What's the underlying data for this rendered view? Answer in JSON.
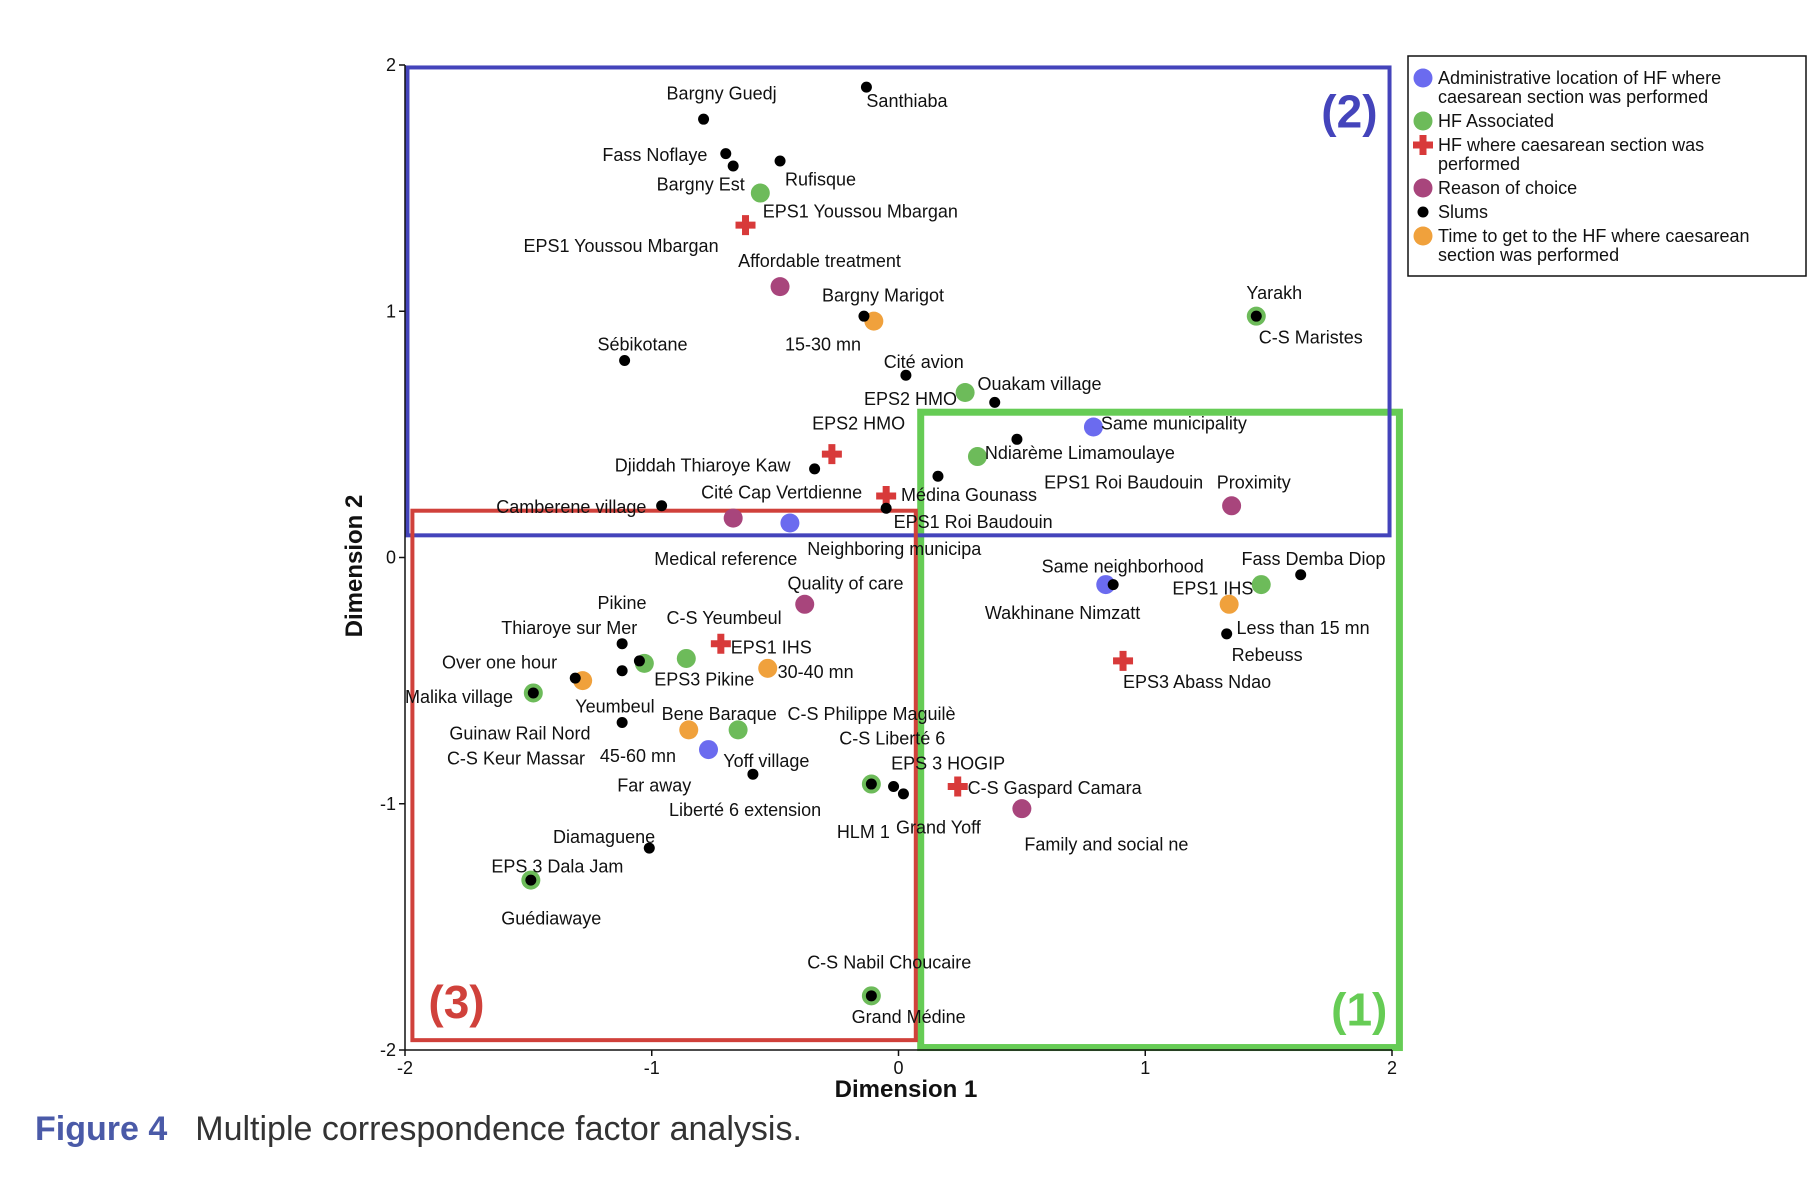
{
  "caption": {
    "label": "Figure 4",
    "text": "Multiple correspondence factor analysis."
  },
  "chart_data": {
    "type": "scatter",
    "xlabel": "Dimension 1",
    "ylabel": "Dimension 2",
    "xlim": [
      -2,
      2
    ],
    "ylim": [
      -2,
      2
    ],
    "xticks": [
      -2,
      -1,
      0,
      1,
      2
    ],
    "yticks": [
      -2,
      -1,
      0,
      1,
      2
    ],
    "grid": false,
    "legend_position": "top-right outside",
    "colors": {
      "admin": "#6b6bef",
      "assoc": "#6dbb5a",
      "hf": "#d83a3a",
      "reason": "#a8457c",
      "slum": "#000000",
      "time": "#f0a13c"
    },
    "series": [
      {
        "key": "admin",
        "name": "Administrative location of HF where caesarean section was performed",
        "legend_lines": [
          "Administrative location of HF where",
          "caesarean section was performed"
        ],
        "marker": "circle"
      },
      {
        "key": "assoc",
        "name": "HF Associated",
        "legend_lines": [
          "HF Associated"
        ],
        "marker": "circle"
      },
      {
        "key": "hf",
        "name": "HF where caesarean section was performed",
        "legend_lines": [
          "HF where caesarean section was",
          "performed"
        ],
        "marker": "cross"
      },
      {
        "key": "reason",
        "name": "Reason of choice",
        "legend_lines": [
          "Reason of choice"
        ],
        "marker": "circle"
      },
      {
        "key": "slum",
        "name": "Slums",
        "legend_lines": [
          "Slums"
        ],
        "marker": "dot"
      },
      {
        "key": "time",
        "name": "Time to get to the HF where caesarean section was performed",
        "legend_lines": [
          "Time to get to the HF where caesarean",
          "section was performed"
        ],
        "marker": "circle"
      }
    ],
    "points": [
      {
        "s": "slum",
        "x": -0.13,
        "y": 1.91
      },
      {
        "s": "slum",
        "x": -0.79,
        "y": 1.78
      },
      {
        "s": "slum",
        "x": -0.7,
        "y": 1.64
      },
      {
        "s": "slum",
        "x": -0.67,
        "y": 1.59
      },
      {
        "s": "slum",
        "x": -0.48,
        "y": 1.61
      },
      {
        "s": "assoc",
        "x": -0.56,
        "y": 1.48
      },
      {
        "s": "hf",
        "x": -0.62,
        "y": 1.35
      },
      {
        "s": "reason",
        "x": -0.48,
        "y": 1.1
      },
      {
        "s": "slum",
        "x": -0.14,
        "y": 0.98
      },
      {
        "s": "time",
        "x": -0.1,
        "y": 0.96
      },
      {
        "s": "slum",
        "x": -1.11,
        "y": 0.8
      },
      {
        "s": "slum",
        "x": 0.03,
        "y": 0.74
      },
      {
        "s": "assoc",
        "x": 0.27,
        "y": 0.67
      },
      {
        "s": "slum",
        "x": 0.39,
        "y": 0.63
      },
      {
        "s": "admin",
        "x": 0.79,
        "y": 0.53
      },
      {
        "s": "slum",
        "x": 0.48,
        "y": 0.48
      },
      {
        "s": "hf",
        "x": -0.27,
        "y": 0.42
      },
      {
        "s": "assoc",
        "x": 0.32,
        "y": 0.41
      },
      {
        "s": "slum",
        "x": -0.34,
        "y": 0.36
      },
      {
        "s": "slum",
        "x": 0.16,
        "y": 0.33
      },
      {
        "s": "hf",
        "x": -0.05,
        "y": 0.25
      },
      {
        "s": "slum",
        "x": -0.05,
        "y": 0.2
      },
      {
        "s": "slum",
        "x": -0.96,
        "y": 0.21
      },
      {
        "s": "reason",
        "x": -0.67,
        "y": 0.16
      },
      {
        "s": "admin",
        "x": -0.44,
        "y": 0.14
      },
      {
        "s": "reason",
        "x": 1.35,
        "y": 0.21
      },
      {
        "s": "assoc",
        "x": 1.45,
        "y": 0.98
      },
      {
        "s": "slum",
        "x": 1.45,
        "y": 0.98
      },
      {
        "s": "slum",
        "x": 1.63,
        "y": -0.07
      },
      {
        "s": "admin",
        "x": 0.84,
        "y": -0.11
      },
      {
        "s": "slum",
        "x": 0.87,
        "y": -0.11
      },
      {
        "s": "assoc",
        "x": 1.47,
        "y": -0.11
      },
      {
        "s": "time",
        "x": 1.34,
        "y": -0.19
      },
      {
        "s": "slum",
        "x": 1.33,
        "y": -0.31
      },
      {
        "s": "hf",
        "x": 0.91,
        "y": -0.42
      },
      {
        "s": "reason",
        "x": -0.38,
        "y": -0.19
      },
      {
        "s": "hf",
        "x": -0.72,
        "y": -0.35
      },
      {
        "s": "assoc",
        "x": -0.86,
        "y": -0.41
      },
      {
        "s": "slum",
        "x": -1.12,
        "y": -0.35
      },
      {
        "s": "slum",
        "x": -1.12,
        "y": -0.46
      },
      {
        "s": "slum",
        "x": -1.05,
        "y": -0.42
      },
      {
        "s": "assoc",
        "x": -1.03,
        "y": -0.43
      },
      {
        "s": "time",
        "x": -0.53,
        "y": -0.45
      },
      {
        "s": "slum",
        "x": -1.31,
        "y": -0.49
      },
      {
        "s": "time",
        "x": -1.28,
        "y": -0.5
      },
      {
        "s": "assoc",
        "x": -1.48,
        "y": -0.55
      },
      {
        "s": "slum",
        "x": -1.48,
        "y": -0.55
      },
      {
        "s": "slum",
        "x": -1.12,
        "y": -0.67
      },
      {
        "s": "time",
        "x": -0.85,
        "y": -0.7
      },
      {
        "s": "assoc",
        "x": -0.65,
        "y": -0.7
      },
      {
        "s": "admin",
        "x": -0.77,
        "y": -0.78
      },
      {
        "s": "slum",
        "x": -0.59,
        "y": -0.88
      },
      {
        "s": "assoc",
        "x": -0.11,
        "y": -0.92
      },
      {
        "s": "slum",
        "x": -0.11,
        "y": -0.92
      },
      {
        "s": "slum",
        "x": -0.02,
        "y": -0.93
      },
      {
        "s": "slum",
        "x": 0.02,
        "y": -0.96
      },
      {
        "s": "hf",
        "x": 0.24,
        "y": -0.93
      },
      {
        "s": "reason",
        "x": 0.5,
        "y": -1.02
      },
      {
        "s": "slum",
        "x": -1.01,
        "y": -1.18
      },
      {
        "s": "assoc",
        "x": -1.49,
        "y": -1.31
      },
      {
        "s": "slum",
        "x": -1.49,
        "y": -1.31
      },
      {
        "s": "assoc",
        "x": -0.11,
        "y": -1.78
      },
      {
        "s": "slum",
        "x": -0.11,
        "y": -1.78
      }
    ],
    "labels": [
      {
        "text": "Bargny Guedj",
        "x": -0.94,
        "y": 1.86
      },
      {
        "text": "Santhiaba",
        "x": -0.13,
        "y": 1.83
      },
      {
        "text": "Fass Noflaye",
        "x": -1.2,
        "y": 1.61
      },
      {
        "text": "Rufisque",
        "x": -0.46,
        "y": 1.51
      },
      {
        "text": "Bargny Est",
        "x": -0.98,
        "y": 1.49
      },
      {
        "text": "EPS1 Youssou Mbargan",
        "x": -0.55,
        "y": 1.38
      },
      {
        "text": "EPS1 Youssou Mbargan",
        "x": -1.52,
        "y": 1.24
      },
      {
        "text": "Affordable treatment",
        "x": -0.65,
        "y": 1.18
      },
      {
        "text": "Bargny Marigot",
        "x": -0.31,
        "y": 1.04
      },
      {
        "text": "Yarakh",
        "x": 1.41,
        "y": 1.05
      },
      {
        "text": "Sébikotane",
        "x": -1.22,
        "y": 0.84
      },
      {
        "text": "15-30 mn",
        "x": -0.46,
        "y": 0.84
      },
      {
        "text": "C-S Maristes",
        "x": 1.46,
        "y": 0.87
      },
      {
        "text": "Cité avion",
        "x": -0.06,
        "y": 0.77
      },
      {
        "text": "Ouakam village",
        "x": 0.32,
        "y": 0.68
      },
      {
        "text": "EPS2 HMO",
        "x": -0.14,
        "y": 0.62
      },
      {
        "text": "Same municipality",
        "x": 0.82,
        "y": 0.52
      },
      {
        "text": "EPS2 HMO",
        "x": -0.35,
        "y": 0.52
      },
      {
        "text": "Ndiarème Limamoulaye",
        "x": 0.35,
        "y": 0.4
      },
      {
        "text": "Djiddah Thiaroye Kaw",
        "x": -1.15,
        "y": 0.35
      },
      {
        "text": "EPS1 Roi Baudouin",
        "x": 0.59,
        "y": 0.28
      },
      {
        "text": "Proximity",
        "x": 1.29,
        "y": 0.28
      },
      {
        "text": "Cité Cap Vertdienne",
        "x": -0.8,
        "y": 0.24
      },
      {
        "text": "Médina Gounass",
        "x": 0.01,
        "y": 0.23
      },
      {
        "text": "Camberene village",
        "x": -1.63,
        "y": 0.18
      },
      {
        "text": "EPS1 Roi Baudouin",
        "x": -0.02,
        "y": 0.12
      },
      {
        "text": "Neighboring municipa",
        "x": -0.37,
        "y": 0.01
      },
      {
        "text": "Medical reference",
        "x": -0.99,
        "y": -0.03
      },
      {
        "text": "Same neighborhood",
        "x": 0.58,
        "y": -0.06
      },
      {
        "text": "Fass Demba Diop",
        "x": 1.39,
        "y": -0.03
      },
      {
        "text": "EPS1 IHS",
        "x": 1.11,
        "y": -0.15
      },
      {
        "text": "Quality of care",
        "x": -0.45,
        "y": -0.13
      },
      {
        "text": "Pikine",
        "x": -1.22,
        "y": -0.21
      },
      {
        "text": "C-S Yeumbeul",
        "x": -0.94,
        "y": -0.27
      },
      {
        "text": "Wakhinane Nimzatt",
        "x": 0.35,
        "y": -0.25
      },
      {
        "text": "Less than 15 mn",
        "x": 1.37,
        "y": -0.31
      },
      {
        "text": "Thiaroye sur Mer",
        "x": -1.61,
        "y": -0.31
      },
      {
        "text": "EPS1 IHS",
        "x": -0.68,
        "y": -0.39
      },
      {
        "text": "Rebeuss",
        "x": 1.35,
        "y": -0.42
      },
      {
        "text": "Over one hour",
        "x": -1.85,
        "y": -0.45
      },
      {
        "text": "30-40 mn",
        "x": -0.49,
        "y": -0.49
      },
      {
        "text": "EPS3 Pikine",
        "x": -0.99,
        "y": -0.52
      },
      {
        "text": "EPS3 Abass Ndao",
        "x": 0.91,
        "y": -0.53
      },
      {
        "text": "Malika village",
        "x": -2.0,
        "y": -0.59
      },
      {
        "text": "Yeumbeul",
        "x": -1.31,
        "y": -0.63
      },
      {
        "text": "Bene Baraque",
        "x": -0.96,
        "y": -0.66
      },
      {
        "text": "C-S Philippe Maguilè",
        "x": -0.45,
        "y": -0.66
      },
      {
        "text": "Guinaw Rail Nord",
        "x": -1.82,
        "y": -0.74
      },
      {
        "text": "C-S Liberté 6",
        "x": -0.24,
        "y": -0.76
      },
      {
        "text": "C-S Keur Massar",
        "x": -1.83,
        "y": -0.84
      },
      {
        "text": "45-60 mn",
        "x": -1.21,
        "y": -0.83
      },
      {
        "text": "Yoff village",
        "x": -0.71,
        "y": -0.85
      },
      {
        "text": "EPS 3 HOGIP",
        "x": -0.03,
        "y": -0.86
      },
      {
        "text": "Far away",
        "x": -1.14,
        "y": -0.95
      },
      {
        "text": "C-S Gaspard Camara",
        "x": 0.28,
        "y": -0.96
      },
      {
        "text": "Liberté 6 extension",
        "x": -0.93,
        "y": -1.05
      },
      {
        "text": "Grand Yoff",
        "x": -0.01,
        "y": -1.12
      },
      {
        "text": "HLM 1",
        "x": -0.25,
        "y": -1.14
      },
      {
        "text": "Family and social ne",
        "x": 0.51,
        "y": -1.19
      },
      {
        "text": "Diamaguene",
        "x": -1.4,
        "y": -1.16
      },
      {
        "text": "EPS 3 Dala Jam",
        "x": -1.65,
        "y": -1.28
      },
      {
        "text": "Guédiawaye",
        "x": -1.61,
        "y": -1.49
      },
      {
        "text": "C-S Nabil Choucaire",
        "x": -0.37,
        "y": -1.67
      },
      {
        "text": "Grand Médine",
        "x": -0.19,
        "y": -1.89
      }
    ],
    "regions": [
      {
        "label": "(1)",
        "color": "#66cc55",
        "x0": 0.09,
        "x1": 2.03,
        "y0": -1.99,
        "y1": 0.59
      },
      {
        "label": "(2)",
        "color": "#4444bb",
        "x0": -1.99,
        "x1": 1.99,
        "y0": 0.09,
        "y1": 1.99
      },
      {
        "label": "(3)",
        "color": "#d0413b",
        "x0": -1.97,
        "x1": 0.07,
        "y0": -1.96,
        "y1": 0.19
      }
    ]
  }
}
